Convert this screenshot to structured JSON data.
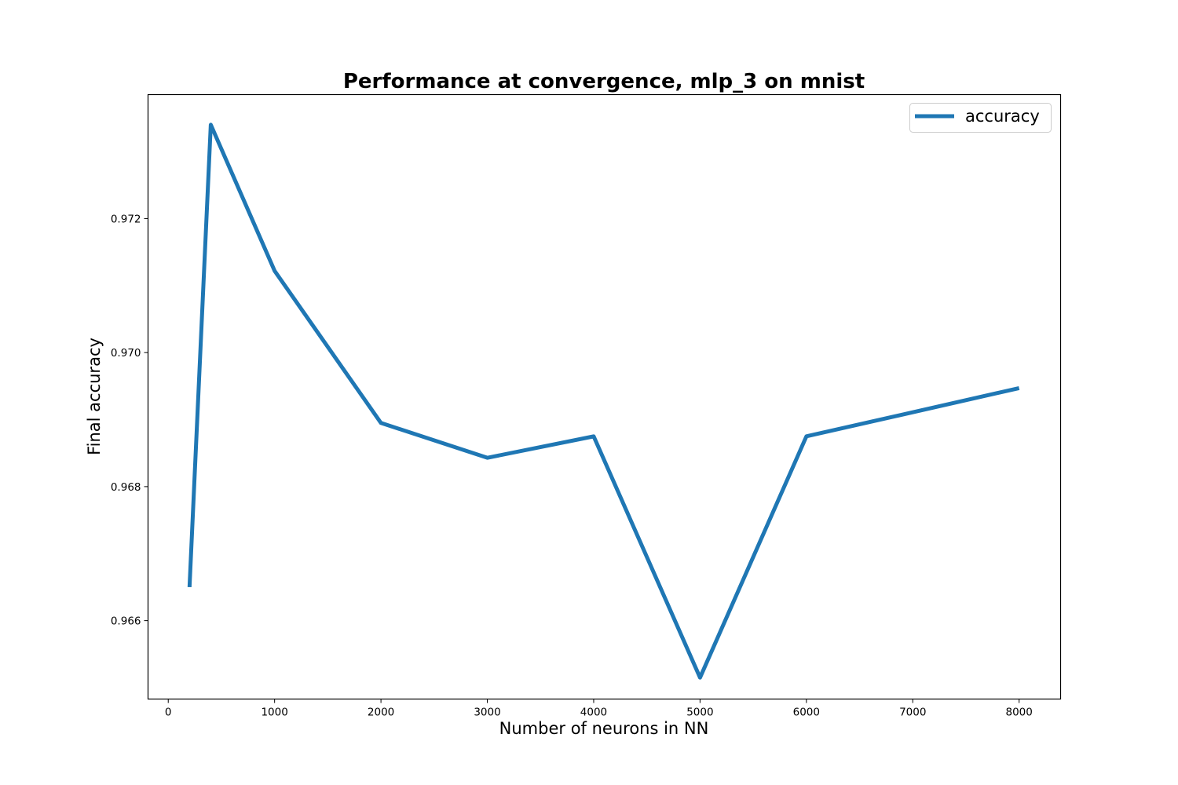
{
  "chart_data": {
    "type": "line",
    "title": "Performance at convergence, mlp_3 on mnist",
    "xlabel": "Number of neurons in NN",
    "ylabel": "Final accuracy",
    "xlim": [
      -190,
      8390
    ],
    "ylim": [
      0.96483,
      0.97385
    ],
    "xticks": [
      0,
      1000,
      2000,
      3000,
      4000,
      5000,
      6000,
      7000,
      8000
    ],
    "xtick_labels": [
      "0",
      "1000",
      "2000",
      "3000",
      "4000",
      "5000",
      "6000",
      "7000",
      "8000"
    ],
    "yticks": [
      0.966,
      0.968,
      0.97,
      0.972
    ],
    "ytick_labels": [
      "0.966",
      "0.968",
      "0.970",
      "0.972"
    ],
    "grid": false,
    "legend": "top-right",
    "series": [
      {
        "name": "accuracy",
        "color": "#1f77b4",
        "x": [
          200,
          400,
          1000,
          2000,
          3000,
          4000,
          5000,
          6000,
          8000
        ],
        "y": [
          0.9665,
          0.9734,
          0.97122,
          0.96895,
          0.96843,
          0.96875,
          0.96515,
          0.96875,
          0.96947
        ]
      }
    ]
  }
}
